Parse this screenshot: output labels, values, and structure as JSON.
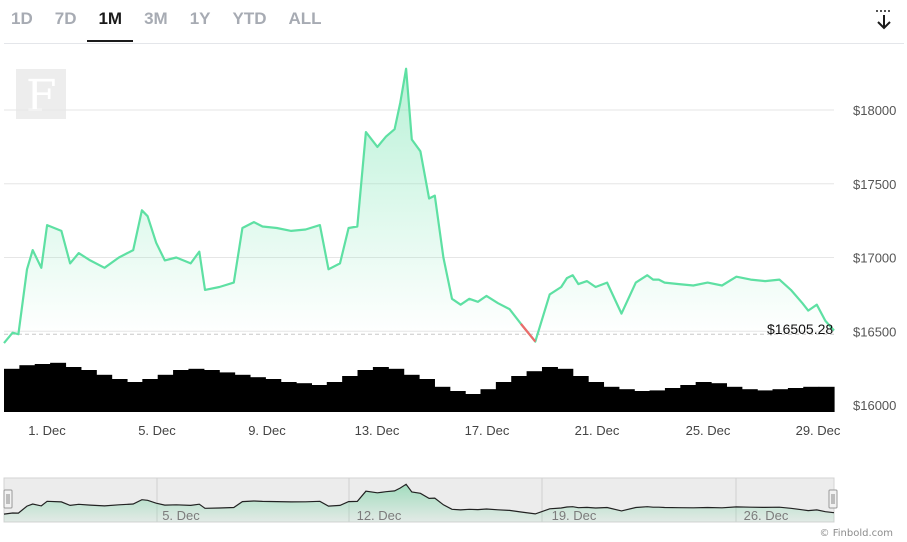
{
  "range_tabs": [
    {
      "label": "1D",
      "active": false
    },
    {
      "label": "7D",
      "active": false
    },
    {
      "label": "1M",
      "active": true
    },
    {
      "label": "3M",
      "active": false
    },
    {
      "label": "1Y",
      "active": false
    },
    {
      "label": "YTD",
      "active": false
    },
    {
      "label": "ALL",
      "active": false
    }
  ],
  "download_icon": "download-arrow-icon",
  "logo_letter": "F",
  "credit": "© Finbold.com",
  "colors": {
    "up_line": "#5ee0a3",
    "down_line": "#ef6a6a",
    "area_top": "#7fe6b6",
    "volume": "#000000",
    "grid": "#e6e6e6"
  },
  "chart_data": {
    "type": "line",
    "title": "",
    "xlabel": "",
    "ylabel": "",
    "x_ticks": [
      "1. Dec",
      "5. Dec",
      "9. Dec",
      "13. Dec",
      "17. Dec",
      "21. Dec",
      "25. Dec",
      "29. Dec"
    ],
    "y_ticks": [
      "$16000",
      "$16500",
      "$17000",
      "$17500",
      "$18000"
    ],
    "ylim": [
      16000,
      18300
    ],
    "grid": true,
    "reference_value": 16480,
    "last_price_label": "$16505.28",
    "series": [
      {
        "x": [
          0,
          0.3,
          0.5,
          0.8,
          1.0,
          1.3,
          1.5,
          2.0,
          2.3,
          2.6,
          3.0,
          3.5,
          4.0,
          4.5,
          4.8,
          5.0,
          5.3,
          5.6,
          6.0,
          6.5,
          6.8,
          7.0,
          7.5,
          8.0,
          8.3,
          8.7,
          9.0,
          9.5,
          10.0,
          10.5,
          11.0,
          11.3,
          11.7,
          12.0,
          12.3,
          12.6,
          13.0,
          13.3,
          13.6,
          13.8,
          14.0,
          14.2,
          14.5,
          14.8,
          15.0,
          15.3,
          15.6,
          15.9,
          16.2,
          16.5,
          16.8,
          17.2,
          17.6,
          18.0,
          18.5,
          19.0,
          19.4,
          19.6,
          19.8,
          20.0,
          20.3,
          20.6,
          21.0,
          21.5,
          22.0,
          22.4,
          22.6,
          22.8,
          23.0,
          23.5,
          24.0,
          24.5,
          25.0,
          25.5,
          26.0,
          26.5,
          27.0,
          27.4,
          27.8,
          28.0,
          28.3,
          28.6,
          28.9
        ],
        "values": [
          16420,
          16490,
          16480,
          16920,
          17050,
          16930,
          17220,
          17180,
          16960,
          17030,
          16980,
          16930,
          17000,
          17050,
          17320,
          17280,
          17100,
          16980,
          17000,
          16960,
          17040,
          16780,
          16800,
          16830,
          17200,
          17240,
          17210,
          17200,
          17180,
          17190,
          17220,
          16920,
          16960,
          17200,
          17210,
          17850,
          17750,
          17820,
          17870,
          18050,
          18280,
          17800,
          17720,
          17400,
          17420,
          17000,
          16720,
          16680,
          16720,
          16700,
          16740,
          16690,
          16650,
          16550,
          16430,
          16750,
          16800,
          16860,
          16880,
          16820,
          16840,
          16800,
          16830,
          16620,
          16830,
          16880,
          16850,
          16850,
          16830,
          16820,
          16810,
          16830,
          16810,
          16870,
          16850,
          16840,
          16850,
          16780,
          16690,
          16640,
          16680,
          16570,
          16505
        ]
      }
    ],
    "volume_relative": [
      0.72,
      0.78,
      0.8,
      0.82,
      0.75,
      0.7,
      0.62,
      0.55,
      0.5,
      0.55,
      0.62,
      0.7,
      0.72,
      0.7,
      0.66,
      0.62,
      0.58,
      0.55,
      0.5,
      0.48,
      0.45,
      0.5,
      0.6,
      0.7,
      0.75,
      0.72,
      0.62,
      0.55,
      0.42,
      0.35,
      0.3,
      0.38,
      0.5,
      0.6,
      0.68,
      0.75,
      0.72,
      0.6,
      0.5,
      0.42,
      0.38,
      0.35,
      0.36,
      0.4,
      0.45,
      0.5,
      0.48,
      0.42,
      0.38,
      0.36,
      0.38,
      0.4,
      0.42,
      0.42
    ],
    "navigator": {
      "x_ticks": [
        "5. Dec",
        "12. Dec",
        "19. Dec",
        "26. Dec"
      ]
    }
  }
}
